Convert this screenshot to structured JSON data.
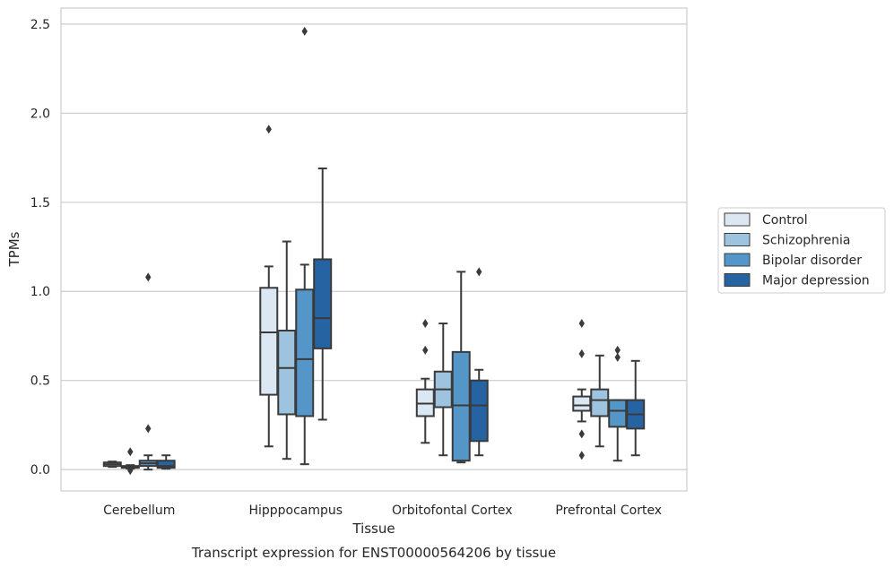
{
  "chart_data": {
    "type": "box",
    "caption": "Transcript expression for ENST00000564206 by tissue",
    "xlabel": "Tissue",
    "ylabel": "TPMs",
    "ylim": [
      -0.12,
      2.59
    ],
    "yticks": [
      0.0,
      0.5,
      1.0,
      1.5,
      2.0,
      2.5
    ],
    "grid": true,
    "legend_position": "right",
    "categories": [
      "Cerebellum",
      "Hipppocampus",
      "Orbitofontal Cortex",
      "Prefrontal Cortex"
    ],
    "series": [
      {
        "name": "Control",
        "color": "#dbe7f3",
        "boxes": [
          {
            "whislo": 0.015,
            "q1": 0.02,
            "med": 0.03,
            "q3": 0.04,
            "whishi": 0.045,
            "fliers": []
          },
          {
            "whislo": 0.13,
            "q1": 0.42,
            "med": 0.77,
            "q3": 1.02,
            "whishi": 1.14,
            "fliers": [
              1.91
            ]
          },
          {
            "whislo": 0.15,
            "q1": 0.3,
            "med": 0.37,
            "q3": 0.45,
            "whishi": 0.51,
            "fliers": [
              0.67,
              0.82
            ]
          },
          {
            "whislo": 0.27,
            "q1": 0.33,
            "med": 0.36,
            "q3": 0.41,
            "whishi": 0.45,
            "fliers": [
              0.08,
              0.2,
              0.65,
              0.82
            ]
          }
        ]
      },
      {
        "name": "Schizophrenia",
        "color": "#9dc3df",
        "boxes": [
          {
            "whislo": 0.005,
            "q1": 0.01,
            "med": 0.015,
            "q3": 0.02,
            "whishi": 0.025,
            "fliers": [
              -0.005,
              0.1
            ]
          },
          {
            "whislo": 0.06,
            "q1": 0.31,
            "med": 0.57,
            "q3": 0.78,
            "whishi": 1.28,
            "fliers": []
          },
          {
            "whislo": 0.08,
            "q1": 0.35,
            "med": 0.45,
            "q3": 0.55,
            "whishi": 0.82,
            "fliers": []
          },
          {
            "whislo": 0.13,
            "q1": 0.3,
            "med": 0.39,
            "q3": 0.45,
            "whishi": 0.64,
            "fliers": []
          }
        ]
      },
      {
        "name": "Bipolar disorder",
        "color": "#5596c8",
        "boxes": [
          {
            "whislo": 0.0,
            "q1": 0.02,
            "med": 0.035,
            "q3": 0.05,
            "whishi": 0.08,
            "fliers": [
              0.23,
              1.08
            ]
          },
          {
            "whislo": 0.03,
            "q1": 0.3,
            "med": 0.62,
            "q3": 1.01,
            "whishi": 1.15,
            "fliers": [
              2.46
            ]
          },
          {
            "whislo": 0.04,
            "q1": 0.05,
            "med": 0.36,
            "q3": 0.66,
            "whishi": 1.11,
            "fliers": []
          },
          {
            "whislo": 0.05,
            "q1": 0.24,
            "med": 0.33,
            "q3": 0.39,
            "whishi": 0.39,
            "fliers": [
              0.63,
              0.67
            ]
          }
        ]
      },
      {
        "name": "Major depression",
        "color": "#2563a3",
        "boxes": [
          {
            "whislo": 0.005,
            "q1": 0.01,
            "med": 0.02,
            "q3": 0.05,
            "whishi": 0.08,
            "fliers": []
          },
          {
            "whislo": 0.28,
            "q1": 0.68,
            "med": 0.85,
            "q3": 1.18,
            "whishi": 1.69,
            "fliers": []
          },
          {
            "whislo": 0.08,
            "q1": 0.16,
            "med": 0.36,
            "q3": 0.5,
            "whishi": 0.56,
            "fliers": [
              1.11
            ]
          },
          {
            "whislo": 0.08,
            "q1": 0.23,
            "med": 0.31,
            "q3": 0.39,
            "whishi": 0.61,
            "fliers": []
          }
        ]
      }
    ]
  }
}
